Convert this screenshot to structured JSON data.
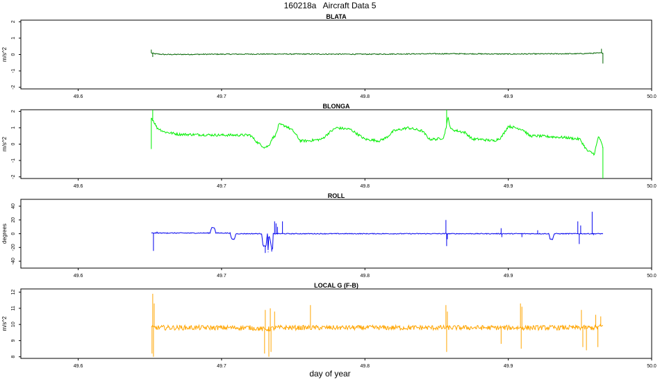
{
  "title": "160218a   Aircraft Data 5",
  "xlabel": "day of year",
  "chart_data": [
    {
      "type": "line",
      "title": "BLATA",
      "ylabel": "m/s^2",
      "color": "#006400",
      "xlim": [
        49.56,
        50.0
      ],
      "ylim": [
        -2.1,
        2.1
      ],
      "xticks": [
        "49.6",
        "49.7",
        "49.8",
        "49.9",
        "50.0"
      ],
      "yticks": [
        "-2",
        "-1",
        "0",
        "1",
        "2"
      ],
      "noise": 0.03,
      "spikes": [
        [
          49.651,
          0.3
        ],
        [
          49.652,
          -0.15
        ],
        [
          49.965,
          0.35
        ],
        [
          49.966,
          -0.55
        ]
      ],
      "x": [
        49.651,
        49.653,
        49.66,
        49.7,
        49.74,
        49.8,
        49.86,
        49.9,
        49.95,
        49.966
      ],
      "y": [
        0.1,
        0.05,
        0.0,
        0.02,
        0.03,
        0.02,
        0.05,
        0.03,
        0.05,
        0.1
      ]
    },
    {
      "type": "line",
      "title": "BLONGA",
      "ylabel": "m/s^2",
      "color": "#00ee00",
      "xlim": [
        49.56,
        50.0
      ],
      "ylim": [
        -2.1,
        2.1
      ],
      "xticks": [
        "49.6",
        "49.7",
        "49.8",
        "49.9",
        "50.0"
      ],
      "yticks": [
        "-2",
        "-1",
        "0",
        "1",
        "2"
      ],
      "noise": 0.08,
      "spikes": [
        [
          49.651,
          -0.3
        ],
        [
          49.652,
          2.1
        ],
        [
          49.857,
          2.1
        ],
        [
          49.966,
          -2.1
        ]
      ],
      "x": [
        49.651,
        49.652,
        49.655,
        49.66,
        49.67,
        49.7,
        49.72,
        49.725,
        49.73,
        49.733,
        49.735,
        49.738,
        49.74,
        49.745,
        49.75,
        49.755,
        49.76,
        49.77,
        49.775,
        49.78,
        49.79,
        49.8,
        49.81,
        49.815,
        49.82,
        49.83,
        49.84,
        49.845,
        49.85,
        49.855,
        49.858,
        49.86,
        49.87,
        49.875,
        49.88,
        49.89,
        49.895,
        49.9,
        49.91,
        49.915,
        49.92,
        49.93,
        49.94,
        49.95,
        49.955,
        49.96,
        49.963,
        49.966
      ],
      "y": [
        1.6,
        1.5,
        1.0,
        0.75,
        0.6,
        0.55,
        0.55,
        0.1,
        -0.2,
        -0.1,
        0.3,
        0.6,
        1.2,
        1.1,
        0.8,
        0.2,
        0.2,
        0.3,
        0.7,
        1.0,
        0.9,
        0.3,
        0.2,
        0.4,
        0.8,
        1.0,
        0.8,
        0.3,
        0.3,
        0.4,
        1.6,
        0.9,
        0.7,
        0.3,
        0.3,
        0.2,
        0.4,
        1.1,
        0.9,
        0.5,
        0.5,
        0.45,
        0.4,
        0.3,
        -0.4,
        -0.6,
        0.5,
        -0.2
      ]
    },
    {
      "type": "line",
      "title": "ROLL",
      "ylabel": "degrees",
      "color": "#0000ee",
      "xlim": [
        49.56,
        50.0
      ],
      "ylim": [
        -50,
        50
      ],
      "xticks": [
        "49.6",
        "49.7",
        "49.8",
        "49.9",
        "50.0"
      ],
      "yticks": [
        "-40",
        "-20",
        "0",
        "20",
        "40"
      ],
      "noise": 0.6,
      "spikes": [
        [
          49.6525,
          -25
        ],
        [
          49.655,
          3
        ],
        [
          49.662,
          2
        ],
        [
          49.7305,
          -28
        ],
        [
          49.7325,
          -26
        ],
        [
          49.735,
          -26
        ],
        [
          49.7355,
          -27
        ],
        [
          49.737,
          18
        ],
        [
          49.738,
          15
        ],
        [
          49.739,
          10
        ],
        [
          49.7425,
          18
        ],
        [
          49.8565,
          20
        ],
        [
          49.857,
          -18
        ],
        [
          49.8575,
          -8
        ],
        [
          49.895,
          8
        ],
        [
          49.8955,
          -5
        ],
        [
          49.9095,
          -5
        ],
        [
          49.9205,
          5
        ],
        [
          49.9485,
          18
        ],
        [
          49.9495,
          -15
        ],
        [
          49.9505,
          12
        ],
        [
          49.9585,
          32
        ],
        [
          49.9595,
          -2
        ]
      ],
      "x": [
        49.651,
        49.692,
        49.693,
        49.695,
        49.696,
        49.706,
        49.707,
        49.709,
        49.71,
        49.728,
        49.729,
        49.731,
        49.732,
        49.7325,
        49.733,
        49.7355,
        49.736,
        49.75,
        49.8,
        49.85,
        49.9,
        49.9285,
        49.929,
        49.931,
        49.932,
        49.96,
        49.966
      ],
      "y": [
        1,
        1,
        9,
        9,
        1,
        1,
        -8,
        -8,
        0,
        0,
        -18,
        -18,
        0,
        -27,
        0,
        -27,
        0,
        0,
        0,
        0,
        0,
        0,
        -8,
        -8,
        0,
        0,
        0
      ]
    },
    {
      "type": "line",
      "title": "LOCAL G (F-B)",
      "ylabel": "m/s^2",
      "color": "#ffa500",
      "xlim": [
        49.56,
        50.0
      ],
      "ylim": [
        7.9,
        12.2
      ],
      "xticks": [
        "49.6",
        "49.7",
        "49.8",
        "49.9",
        "50.0"
      ],
      "yticks": [
        "8",
        "9",
        "10",
        "11",
        "12"
      ],
      "noise": 0.15,
      "spikes": [
        [
          49.6515,
          8.2
        ],
        [
          49.652,
          11.9
        ],
        [
          49.6525,
          8.0
        ],
        [
          49.653,
          11.3
        ],
        [
          49.73,
          8.2
        ],
        [
          49.7305,
          10.9
        ],
        [
          49.733,
          8.0
        ],
        [
          49.734,
          11.0
        ],
        [
          49.7345,
          8.3
        ],
        [
          49.737,
          10.8
        ],
        [
          49.762,
          11.2
        ],
        [
          49.8565,
          11.2
        ],
        [
          49.857,
          8.3
        ],
        [
          49.8575,
          10.8
        ],
        [
          49.895,
          8.8
        ],
        [
          49.9085,
          11.3
        ],
        [
          49.909,
          8.5
        ],
        [
          49.9095,
          11.1
        ],
        [
          49.951,
          10.9
        ],
        [
          49.952,
          8.6
        ],
        [
          49.9545,
          8.4
        ],
        [
          49.961,
          10.6
        ],
        [
          49.9625,
          8.6
        ],
        [
          49.9645,
          10.5
        ]
      ],
      "x": [
        49.651,
        49.66,
        49.7,
        49.72,
        49.73,
        49.74,
        49.75,
        49.8,
        49.85,
        49.86,
        49.9,
        49.91,
        49.95,
        49.96,
        49.966
      ],
      "y": [
        9.8,
        9.8,
        9.8,
        9.8,
        9.7,
        9.8,
        9.8,
        9.8,
        9.8,
        9.8,
        9.8,
        9.8,
        9.8,
        9.8,
        9.9
      ]
    }
  ]
}
